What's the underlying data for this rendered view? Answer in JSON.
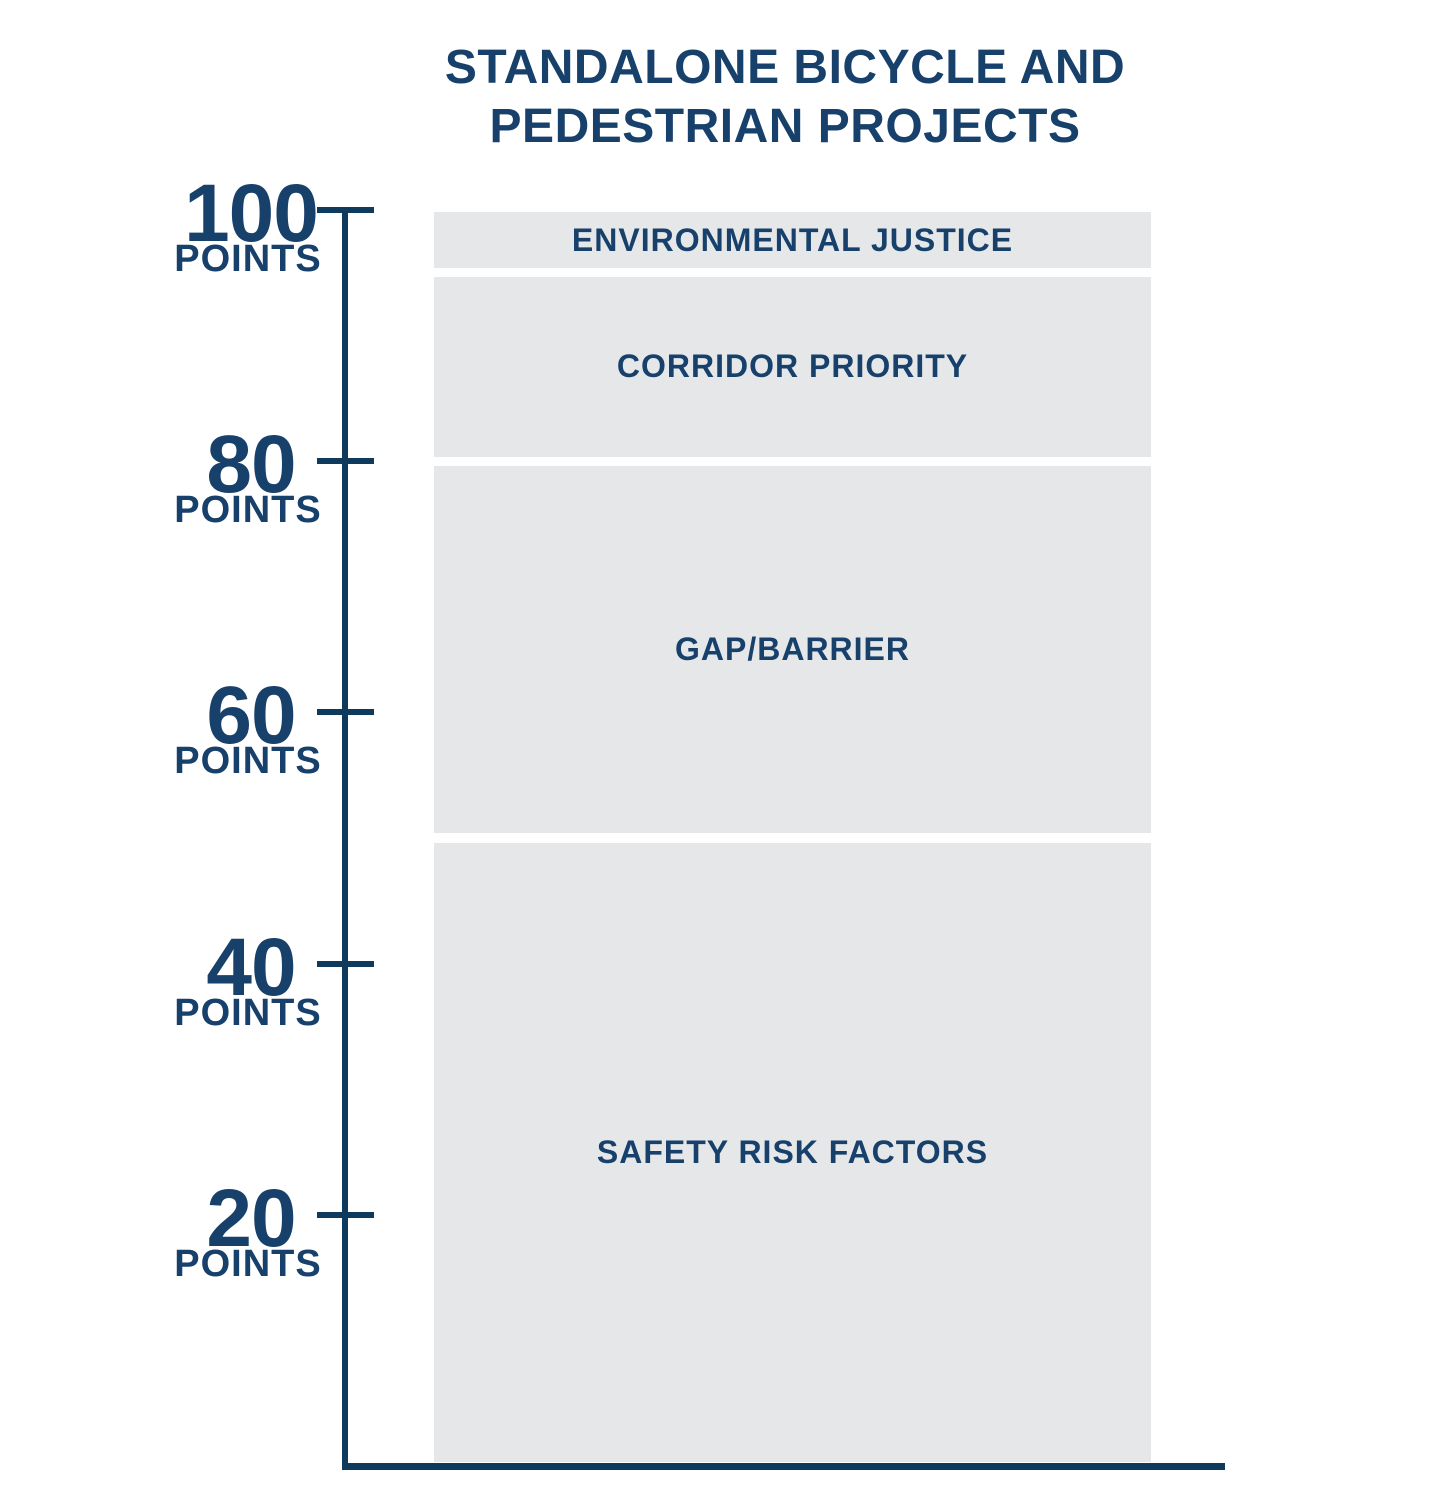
{
  "title_lines": [
    "STANDALONE BICYCLE AND",
    "PEDESTRIAN PROJECTS"
  ],
  "chart_data": {
    "type": "bar",
    "variant": "single-stacked-column",
    "title": "STANDALONE BICYCLE AND PEDESTRIAN PROJECTS",
    "unit": "points",
    "total_points": 100,
    "categories": [
      "STANDALONE BICYCLE AND PEDESTRIAN PROJECTS"
    ],
    "series": [
      {
        "name": "SAFETY RISK FACTORS",
        "values": [
          50
        ]
      },
      {
        "name": "GAP/BARRIER",
        "values": [
          30
        ]
      },
      {
        "name": "CORRIDOR PRIORITY",
        "values": [
          15
        ]
      },
      {
        "name": "ENVIRONMENTAL JUSTICE",
        "values": [
          5
        ]
      }
    ],
    "segments_top_to_bottom": [
      {
        "label": "ENVIRONMENTAL JUSTICE",
        "points": 5,
        "span": [
          95,
          100
        ]
      },
      {
        "label": "CORRIDOR PRIORITY",
        "points": 15,
        "span": [
          80,
          95
        ]
      },
      {
        "label": "GAP/BARRIER",
        "points": 30,
        "span": [
          50,
          80
        ]
      },
      {
        "label": "SAFETY RISK FACTORS",
        "points": 50,
        "span": [
          0,
          50
        ]
      }
    ],
    "y_axis": {
      "range": [
        0,
        100
      ],
      "ticks": [
        100,
        80,
        60,
        40,
        20
      ],
      "tick_suffix": "POINTS"
    },
    "legend": "none",
    "grid": false,
    "colors": {
      "navy_text": "#17406B",
      "axis_line": "#0E3A5E",
      "segment_fill": "#E6E7E8",
      "background": "#FFFFFF"
    }
  }
}
